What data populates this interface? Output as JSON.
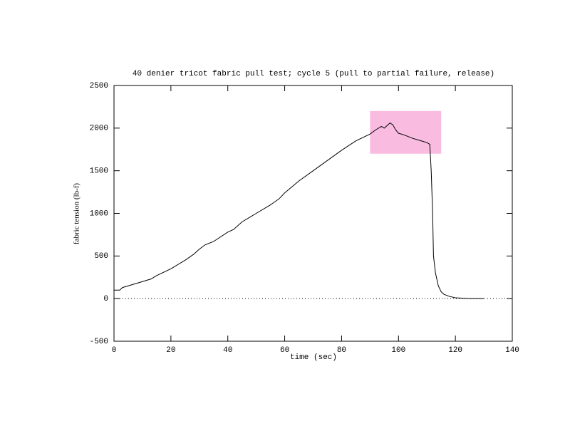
{
  "chart_data": {
    "type": "line",
    "title": "40 denier tricot fabric pull test; cycle 5 (pull to partial failure, release)",
    "x_label": "time (sec)",
    "y_label": "fabric tension (lb-f)",
    "xlim": [
      0,
      140
    ],
    "xticks": [
      0,
      20,
      40,
      60,
      80,
      100,
      120,
      140
    ],
    "ylim": [
      -500,
      2500
    ],
    "yticks": [
      -500,
      0,
      500,
      1000,
      1500,
      2000,
      2500
    ],
    "zero_line": true,
    "highlight": {
      "xlim": [
        90,
        115
      ],
      "ylim": [
        1700,
        2200
      ],
      "color": "#f9bbe0"
    },
    "series": [
      {
        "color": "#000000",
        "x": [
          0,
          2,
          3,
          5,
          10,
          13,
          15,
          20,
          25,
          28,
          30,
          32,
          35,
          40,
          42,
          45,
          48,
          50,
          55,
          58,
          60,
          65,
          70,
          75,
          80,
          85,
          90,
          92,
          94,
          95,
          97,
          98,
          99,
          100,
          102,
          105,
          108,
          110,
          111,
          111.5,
          112,
          112.3,
          113,
          114,
          115,
          116,
          118,
          120,
          125,
          130
        ],
        "values": [
          100,
          100,
          130,
          150,
          200,
          230,
          270,
          350,
          450,
          520,
          580,
          630,
          670,
          780,
          810,
          900,
          960,
          1000,
          1100,
          1170,
          1240,
          1380,
          1500,
          1620,
          1740,
          1850,
          1930,
          1980,
          2020,
          2000,
          2060,
          2040,
          1980,
          1940,
          1920,
          1880,
          1850,
          1830,
          1810,
          1500,
          1000,
          500,
          300,
          150,
          80,
          50,
          25,
          10,
          0,
          0
        ]
      }
    ]
  }
}
